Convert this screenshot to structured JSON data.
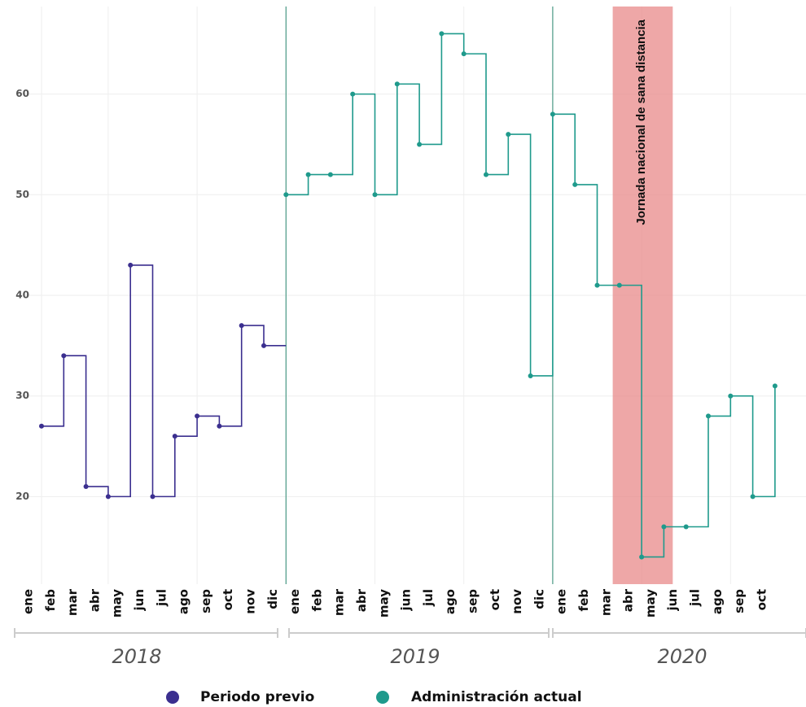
{
  "chart_data": {
    "type": "step",
    "categories": [
      "ene",
      "feb",
      "mar",
      "abr",
      "may",
      "jun",
      "jul",
      "ago",
      "sep",
      "oct",
      "nov",
      "dic",
      "ene",
      "feb",
      "mar",
      "abr",
      "may",
      "jun",
      "jul",
      "ago",
      "sep",
      "oct",
      "nov",
      "dic",
      "ene",
      "feb",
      "mar",
      "abr",
      "may",
      "jun",
      "jul",
      "ago",
      "sep",
      "oct"
    ],
    "years": [
      "2018",
      "2019",
      "2020"
    ],
    "series": [
      {
        "name": "Periodo previo",
        "color": "#3b2f8f",
        "values": [
          27,
          34,
          21,
          20,
          43,
          20,
          26,
          28,
          27,
          37,
          35,
          null,
          null,
          null,
          null,
          null,
          null,
          null,
          null,
          null,
          null,
          null,
          null,
          null,
          null,
          null,
          null,
          null,
          null,
          null,
          null,
          null,
          null,
          null
        ]
      },
      {
        "name": "Administración actual",
        "color": "#1f9a8c",
        "values": [
          null,
          null,
          null,
          null,
          null,
          null,
          null,
          null,
          null,
          null,
          null,
          50,
          52,
          52,
          60,
          50,
          61,
          55,
          66,
          64,
          52,
          56,
          32,
          58,
          51,
          41,
          41,
          14,
          17,
          17,
          28,
          30,
          20,
          31
        ]
      }
    ],
    "annotation": "Jornada nacional de sana distancia",
    "ylim": [
      11.3,
      68.7
    ],
    "yticks": [
      20,
      30,
      40,
      50,
      60
    ],
    "grid": true
  }
}
